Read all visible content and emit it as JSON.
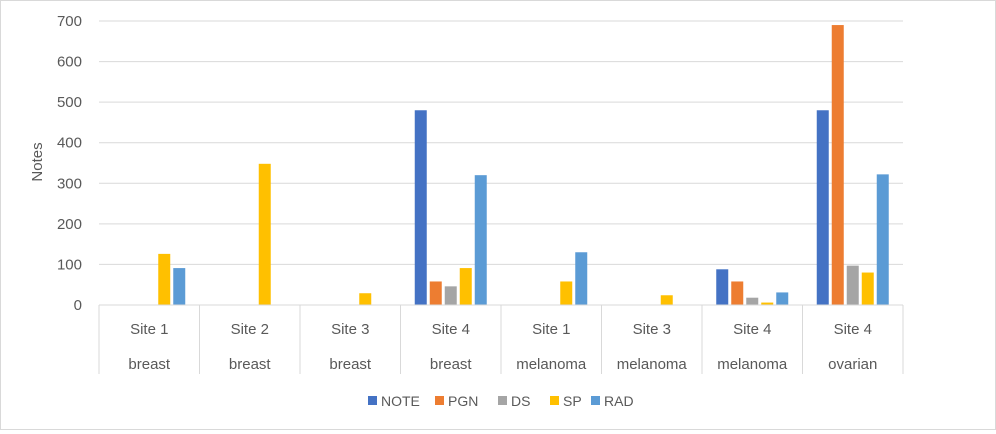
{
  "chart_data": {
    "type": "bar",
    "ylabel": "Notes",
    "ylim": [
      0,
      700
    ],
    "yticks": [
      0,
      100,
      200,
      300,
      400,
      500,
      600,
      700
    ],
    "grid": true,
    "legend_position": "bottom",
    "categories": [
      {
        "site": "Site 1",
        "cancer": "breast"
      },
      {
        "site": "Site 2",
        "cancer": "breast"
      },
      {
        "site": "Site 3",
        "cancer": "breast"
      },
      {
        "site": "Site 4",
        "cancer": "breast"
      },
      {
        "site": "Site 1",
        "cancer": "melanoma"
      },
      {
        "site": "Site 3",
        "cancer": "melanoma"
      },
      {
        "site": "Site 4",
        "cancer": "melanoma"
      },
      {
        "site": "Site 4",
        "cancer": "ovarian"
      }
    ],
    "series": [
      {
        "name": "NOTE",
        "color": "#4472C4",
        "values": [
          0,
          0,
          0,
          480,
          0,
          0,
          88,
          480
        ]
      },
      {
        "name": "PGN",
        "color": "#ED7D31",
        "values": [
          0,
          0,
          0,
          58,
          0,
          0,
          58,
          690
        ]
      },
      {
        "name": "DS",
        "color": "#A5A5A5",
        "values": [
          0,
          0,
          0,
          46,
          0,
          0,
          18,
          97
        ]
      },
      {
        "name": "SP",
        "color": "#FFC000",
        "values": [
          126,
          348,
          29,
          91,
          58,
          24,
          6,
          80
        ]
      },
      {
        "name": "RAD",
        "color": "#5B9BD5",
        "values": [
          91,
          0,
          0,
          320,
          130,
          0,
          31,
          322
        ]
      }
    ]
  }
}
